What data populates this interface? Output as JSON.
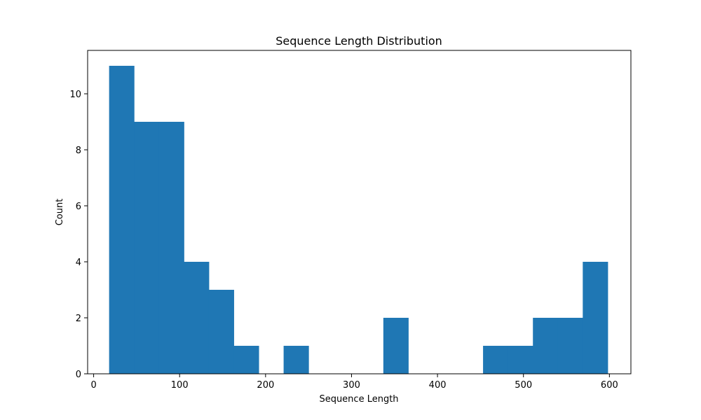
{
  "chart_data": {
    "type": "bar",
    "title": "Sequence Length Distribution",
    "xlabel": "Sequence Length",
    "ylabel": "Count",
    "xlim": [
      -7,
      625
    ],
    "ylim": [
      0,
      11.55
    ],
    "xticks": [
      0,
      100,
      200,
      300,
      400,
      500,
      600
    ],
    "yticks": [
      0,
      2,
      4,
      6,
      8,
      10
    ],
    "grid": false,
    "bar_color": "#1f77b4",
    "bins": [
      {
        "x0": 18,
        "x1": 47,
        "count": 11
      },
      {
        "x0": 47,
        "x1": 76,
        "count": 9
      },
      {
        "x0": 76,
        "x1": 105,
        "count": 9
      },
      {
        "x0": 105,
        "x1": 134,
        "count": 4
      },
      {
        "x0": 134,
        "x1": 163,
        "count": 3
      },
      {
        "x0": 163,
        "x1": 192,
        "count": 1
      },
      {
        "x0": 192,
        "x1": 221,
        "count": 0
      },
      {
        "x0": 221,
        "x1": 250,
        "count": 1
      },
      {
        "x0": 250,
        "x1": 279,
        "count": 0
      },
      {
        "x0": 279,
        "x1": 308,
        "count": 0
      },
      {
        "x0": 308,
        "x1": 337,
        "count": 0
      },
      {
        "x0": 337,
        "x1": 366,
        "count": 2
      },
      {
        "x0": 366,
        "x1": 395,
        "count": 0
      },
      {
        "x0": 395,
        "x1": 424,
        "count": 0
      },
      {
        "x0": 424,
        "x1": 453,
        "count": 0
      },
      {
        "x0": 453,
        "x1": 482,
        "count": 1
      },
      {
        "x0": 482,
        "x1": 511,
        "count": 1
      },
      {
        "x0": 511,
        "x1": 540,
        "count": 2
      },
      {
        "x0": 540,
        "x1": 569,
        "count": 2
      },
      {
        "x0": 569,
        "x1": 598,
        "count": 4
      }
    ]
  }
}
